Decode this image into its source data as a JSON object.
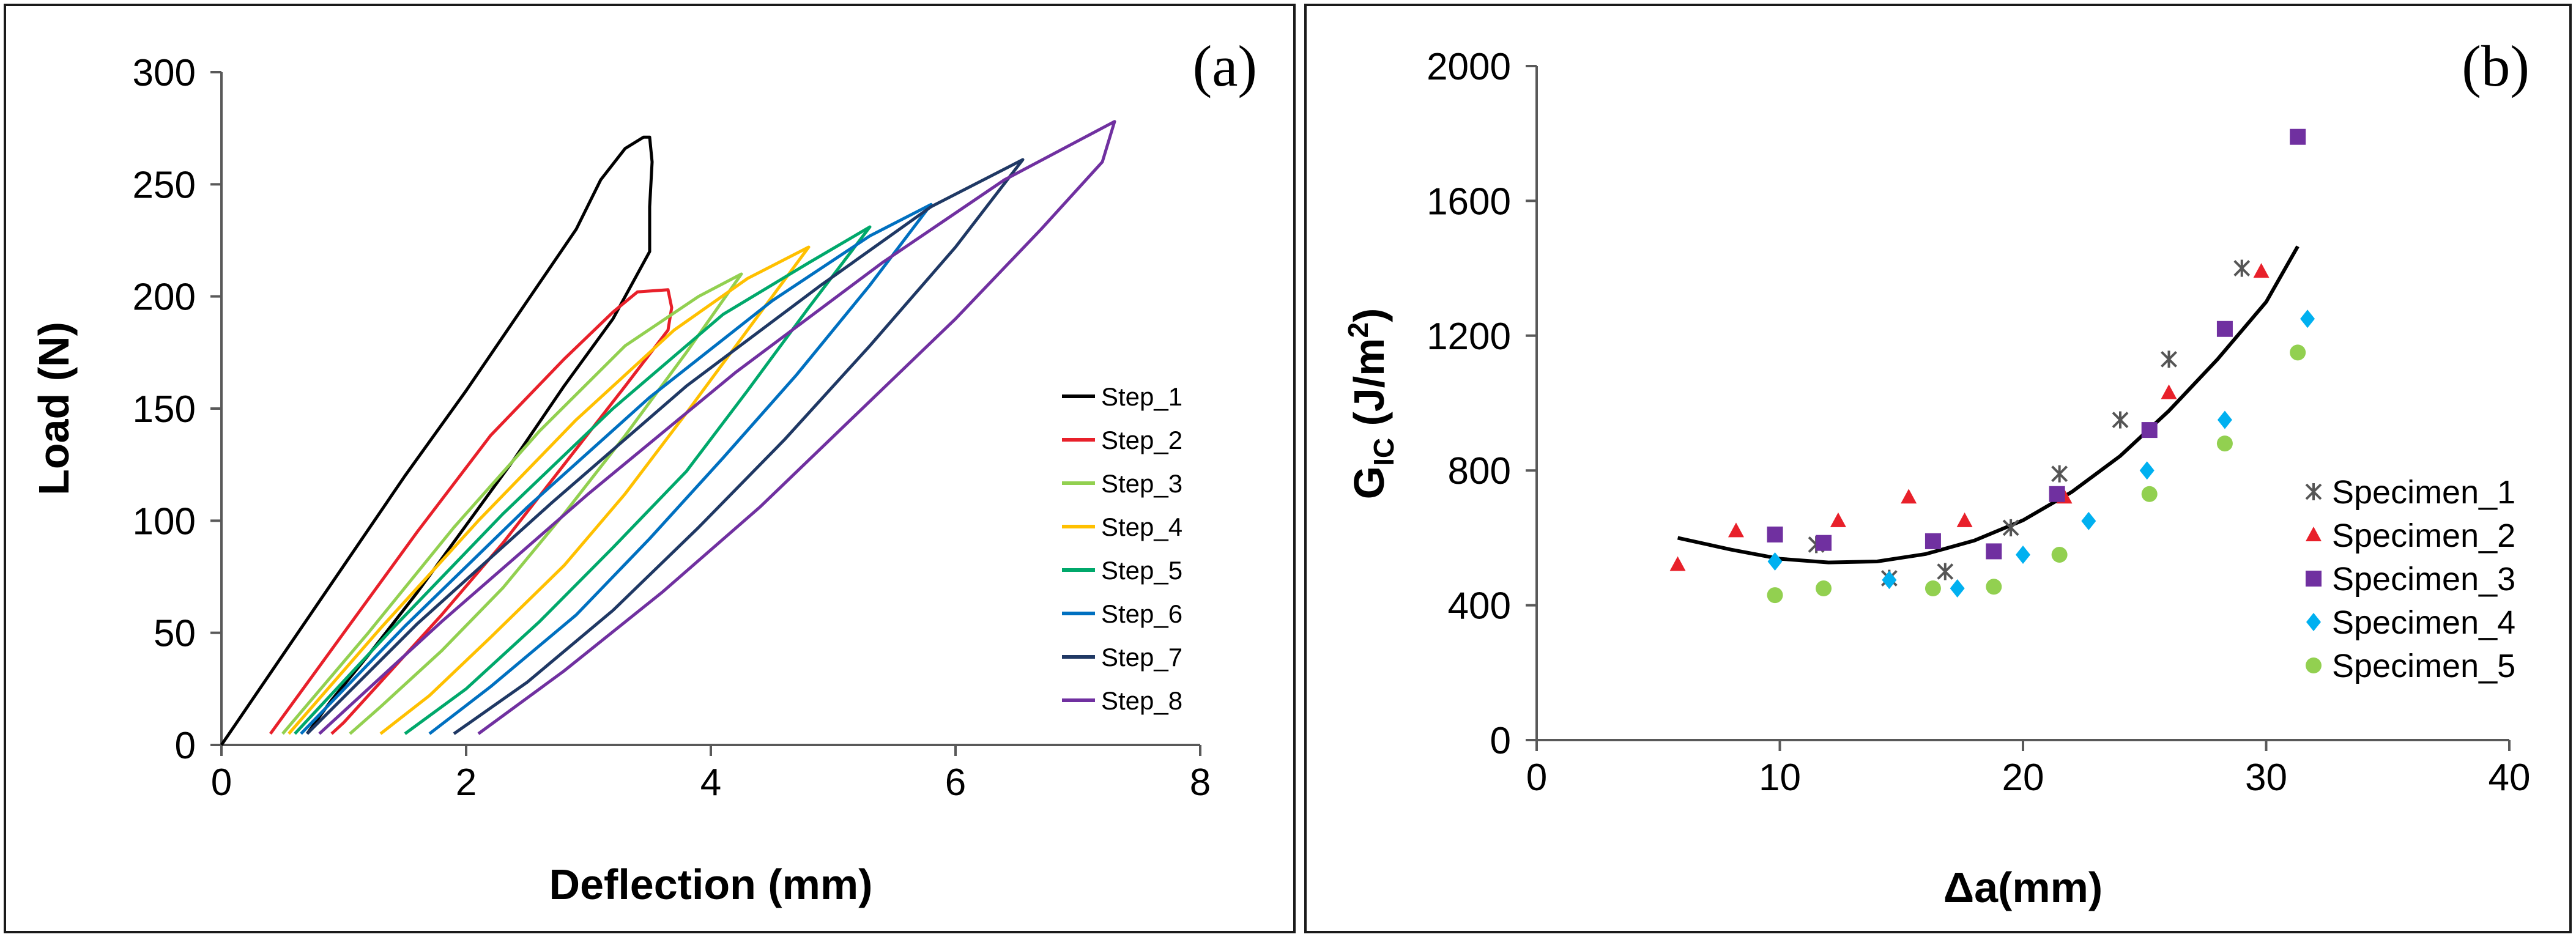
{
  "chart_data": [
    {
      "type": "line",
      "panel_label": "(a)",
      "xlabel": "Deflection (mm)",
      "ylabel": "Load (N)",
      "xlim": [
        0,
        8
      ],
      "ylim": [
        0,
        300
      ],
      "xticks": [
        "0",
        "2",
        "4",
        "6",
        "8"
      ],
      "yticks": [
        "0",
        "50",
        "100",
        "150",
        "200",
        "250",
        "300"
      ],
      "legend_position": "right-center",
      "series": [
        {
          "name": "Step_1",
          "color": "#000000",
          "loading": [
            [
              0.0,
              0
            ],
            [
              0.5,
              40
            ],
            [
              1.0,
              80
            ],
            [
              1.5,
              120
            ],
            [
              2.0,
              158
            ],
            [
              2.5,
              198
            ],
            [
              2.9,
              230
            ],
            [
              3.1,
              252
            ],
            [
              3.3,
              266
            ],
            [
              3.45,
              271
            ],
            [
              3.5,
              271
            ],
            [
              3.52,
              260
            ],
            [
              3.5,
              240
            ],
            [
              3.5,
              220
            ]
          ],
          "unloading": [
            [
              3.5,
              218
            ],
            [
              3.2,
              190
            ],
            [
              2.8,
              160
            ],
            [
              2.4,
              128
            ],
            [
              2.0,
              98
            ],
            [
              1.6,
              68
            ],
            [
              1.2,
              40
            ],
            [
              0.9,
              20
            ],
            [
              0.7,
              5
            ]
          ]
        },
        {
          "name": "Step_2",
          "color": "#e8202a",
          "loading": [
            [
              0.4,
              5
            ],
            [
              1.0,
              50
            ],
            [
              1.6,
              95
            ],
            [
              2.2,
              138
            ],
            [
              2.8,
              172
            ],
            [
              3.2,
              193
            ],
            [
              3.4,
              202
            ],
            [
              3.65,
              203
            ],
            [
              3.68,
              195
            ],
            [
              3.65,
              185
            ]
          ],
          "unloading": [
            [
              3.65,
              185
            ],
            [
              3.3,
              160
            ],
            [
              2.8,
              125
            ],
            [
              2.3,
              90
            ],
            [
              1.8,
              58
            ],
            [
              1.3,
              28
            ],
            [
              1.0,
              10
            ],
            [
              0.9,
              5
            ]
          ]
        },
        {
          "name": "Step_3",
          "color": "#92d050",
          "loading": [
            [
              0.5,
              5
            ],
            [
              1.2,
              50
            ],
            [
              1.9,
              97
            ],
            [
              2.6,
              140
            ],
            [
              3.3,
              178
            ],
            [
              3.9,
              200
            ],
            [
              4.25,
              210
            ]
          ],
          "unloading": [
            [
              4.25,
              210
            ],
            [
              3.8,
              175
            ],
            [
              3.3,
              138
            ],
            [
              2.8,
              103
            ],
            [
              2.3,
              70
            ],
            [
              1.8,
              42
            ],
            [
              1.3,
              17
            ],
            [
              1.05,
              5
            ]
          ]
        },
        {
          "name": "Step_4",
          "color": "#ffc000",
          "loading": [
            [
              0.55,
              5
            ],
            [
              1.3,
              52
            ],
            [
              2.1,
              100
            ],
            [
              2.9,
              145
            ],
            [
              3.7,
              185
            ],
            [
              4.3,
              208
            ],
            [
              4.8,
              222
            ]
          ],
          "unloading": [
            [
              4.8,
              222
            ],
            [
              4.3,
              185
            ],
            [
              3.8,
              148
            ],
            [
              3.3,
              112
            ],
            [
              2.8,
              80
            ],
            [
              2.2,
              48
            ],
            [
              1.7,
              22
            ],
            [
              1.3,
              5
            ]
          ]
        },
        {
          "name": "Step_5",
          "color": "#00a86b",
          "loading": [
            [
              0.6,
              5
            ],
            [
              1.4,
              52
            ],
            [
              2.3,
              103
            ],
            [
              3.2,
              150
            ],
            [
              4.1,
              192
            ],
            [
              4.8,
              215
            ],
            [
              5.3,
              231
            ]
          ],
          "unloading": [
            [
              5.3,
              231
            ],
            [
              4.8,
              195
            ],
            [
              4.3,
              158
            ],
            [
              3.8,
              122
            ],
            [
              3.2,
              88
            ],
            [
              2.6,
              55
            ],
            [
              2.0,
              25
            ],
            [
              1.5,
              5
            ]
          ]
        },
        {
          "name": "Step_6",
          "color": "#0070c0",
          "loading": [
            [
              0.65,
              5
            ],
            [
              1.5,
              53
            ],
            [
              2.5,
              106
            ],
            [
              3.5,
              155
            ],
            [
              4.5,
              198
            ],
            [
              5.3,
              227
            ],
            [
              5.8,
              241
            ]
          ],
          "unloading": [
            [
              5.8,
              241
            ],
            [
              5.3,
              205
            ],
            [
              4.7,
              165
            ],
            [
              4.1,
              128
            ],
            [
              3.5,
              92
            ],
            [
              2.9,
              58
            ],
            [
              2.2,
              26
            ],
            [
              1.7,
              5
            ]
          ]
        },
        {
          "name": "Step_7",
          "color": "#1f3864",
          "loading": [
            [
              0.7,
              5
            ],
            [
              1.6,
              54
            ],
            [
              2.7,
              108
            ],
            [
              3.8,
              160
            ],
            [
              4.9,
              205
            ],
            [
              5.8,
              240
            ],
            [
              6.55,
              261
            ]
          ],
          "unloading": [
            [
              6.55,
              261
            ],
            [
              6.0,
              222
            ],
            [
              5.3,
              178
            ],
            [
              4.6,
              136
            ],
            [
              3.9,
              97
            ],
            [
              3.2,
              60
            ],
            [
              2.5,
              28
            ],
            [
              1.9,
              5
            ]
          ]
        },
        {
          "name": "Step_8",
          "color": "#7030a0",
          "loading": [
            [
              0.8,
              5
            ],
            [
              1.8,
              55
            ],
            [
              3.0,
              112
            ],
            [
              4.2,
              166
            ],
            [
              5.4,
              215
            ],
            [
              6.4,
              252
            ],
            [
              7.3,
              278
            ]
          ],
          "unloading": [
            [
              7.3,
              278
            ],
            [
              7.2,
              260
            ],
            [
              6.7,
              230
            ],
            [
              6.0,
              190
            ],
            [
              5.2,
              148
            ],
            [
              4.4,
              106
            ],
            [
              3.6,
              68
            ],
            [
              2.8,
              33
            ],
            [
              2.1,
              5
            ]
          ]
        }
      ]
    },
    {
      "type": "scatter",
      "panel_label": "(b)",
      "xlabel": "Δa(mm)",
      "ylabel": "G_IC (J/m²)",
      "ylabel_parts": {
        "main": "G",
        "sub": "IC",
        "unit_open": " (J/m",
        "sup": "2",
        "unit_close": ")"
      },
      "xlim": [
        0,
        40
      ],
      "ylim": [
        0,
        2000
      ],
      "xticks": [
        "0",
        "10",
        "20",
        "30",
        "40"
      ],
      "yticks": [
        "0",
        "400",
        "800",
        "1200",
        "1600",
        "2000"
      ],
      "legend_position": "right-center",
      "series": [
        {
          "name": "Specimen_1",
          "color": "#555555",
          "marker": "star",
          "points": [
            [
              11.5,
              580
            ],
            [
              14.5,
              480
            ],
            [
              16.8,
              500
            ],
            [
              19.5,
              630
            ],
            [
              21.5,
              790
            ],
            [
              24,
              950
            ],
            [
              26,
              1130
            ],
            [
              29,
              1400
            ]
          ]
        },
        {
          "name": "Specimen_2",
          "color": "#e8202a",
          "marker": "triangle",
          "points": [
            [
              5.8,
              520
            ],
            [
              8.2,
              620
            ],
            [
              12.4,
              650
            ],
            [
              15.3,
              720
            ],
            [
              17.6,
              650
            ],
            [
              21.7,
              720
            ],
            [
              26,
              1030
            ],
            [
              29.8,
              1390
            ]
          ]
        },
        {
          "name": "Specimen_3",
          "color": "#7030a0",
          "marker": "square",
          "points": [
            [
              9.8,
              610
            ],
            [
              11.8,
              585
            ],
            [
              16.3,
              590
            ],
            [
              18.8,
              560
            ],
            [
              21.4,
              730
            ],
            [
              25.2,
              920
            ],
            [
              28.3,
              1220
            ],
            [
              31.3,
              1790
            ]
          ]
        },
        {
          "name": "Specimen_4",
          "color": "#00b0f0",
          "marker": "diamond",
          "points": [
            [
              9.8,
              530
            ],
            [
              14.5,
              475
            ],
            [
              17.3,
              450
            ],
            [
              20,
              550
            ],
            [
              22.7,
              650
            ],
            [
              25.1,
              800
            ],
            [
              28.3,
              950
            ],
            [
              31.7,
              1250
            ]
          ]
        },
        {
          "name": "Specimen_5",
          "color": "#92d050",
          "marker": "circle",
          "points": [
            [
              9.8,
              430
            ],
            [
              11.8,
              450
            ],
            [
              16.3,
              450
            ],
            [
              18.8,
              455
            ],
            [
              21.5,
              550
            ],
            [
              25.2,
              730
            ],
            [
              28.3,
              880
            ],
            [
              31.3,
              1150
            ]
          ]
        }
      ],
      "trendline": {
        "type": "polynomial",
        "color": "#000000",
        "points": [
          [
            5.8,
            600
          ],
          [
            8,
            565
          ],
          [
            10,
            538
          ],
          [
            12,
            527
          ],
          [
            14,
            530
          ],
          [
            16,
            552
          ],
          [
            18,
            592
          ],
          [
            20,
            652
          ],
          [
            22,
            736
          ],
          [
            24,
            843
          ],
          [
            26,
            977
          ],
          [
            28,
            1130
          ],
          [
            30,
            1300
          ],
          [
            31.3,
            1465
          ]
        ]
      }
    }
  ]
}
